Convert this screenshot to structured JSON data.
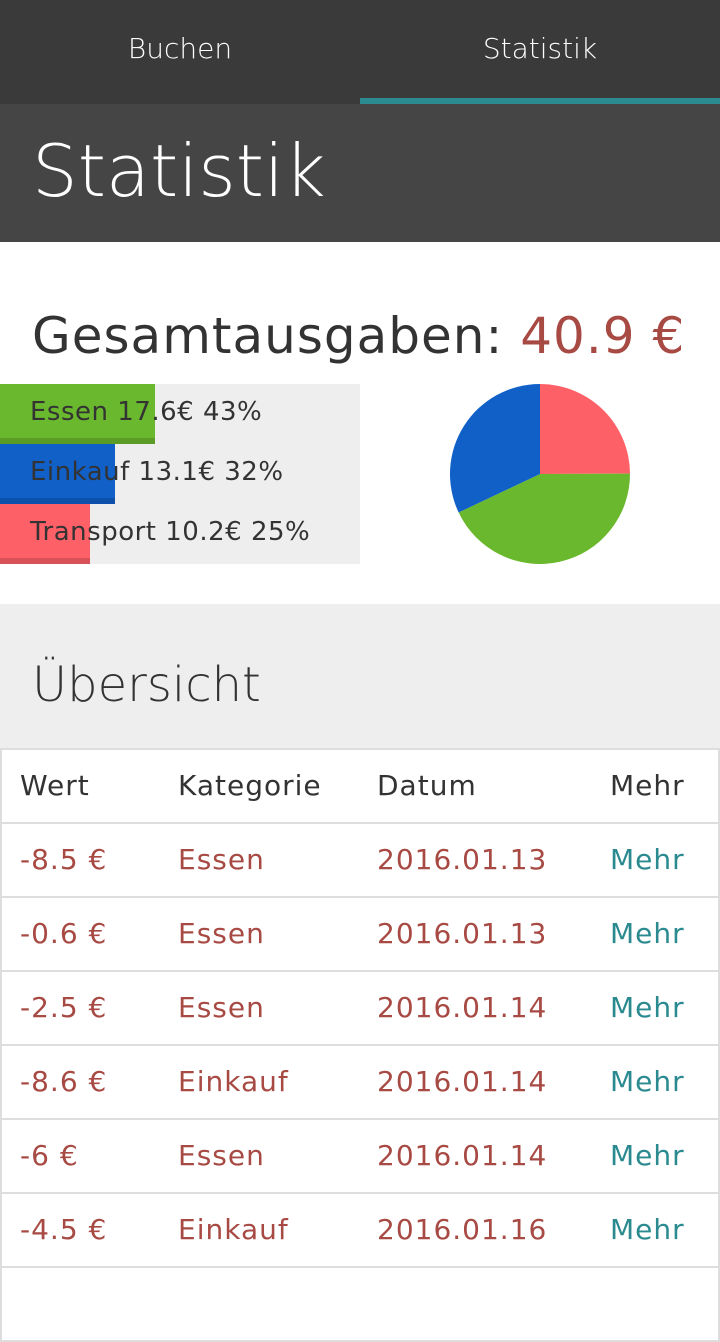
{
  "tabs": [
    {
      "label": "Buchen",
      "active": false
    },
    {
      "label": "Statistik",
      "active": true
    }
  ],
  "colors": {
    "accent": "#2a8a8f",
    "value_red": "#a84a44",
    "essen": "#6ab82d",
    "einkauf": "#1060c8",
    "transport": "#fe6068"
  },
  "page_title": "Statistik",
  "total": {
    "label": "Gesamtausgaben:",
    "value": "40.9 €"
  },
  "categories": [
    {
      "label": "Essen 17.6€ 43%",
      "name": "Essen",
      "amount": 17.6,
      "percent": 43,
      "color": "#6ab82d"
    },
    {
      "label": "Einkauf 13.1€ 32%",
      "name": "Einkauf",
      "amount": 13.1,
      "percent": 32,
      "color": "#1060c8"
    },
    {
      "label": "Transport 10.2€ 25%",
      "name": "Transport",
      "amount": 10.2,
      "percent": 25,
      "color": "#fe6068"
    }
  ],
  "overview": {
    "title": "Übersicht",
    "headers": [
      "Wert",
      "Kategorie",
      "Datum",
      "Mehr"
    ],
    "rows": [
      [
        "-8.5 €",
        "Essen",
        "2016.01.13",
        "Mehr"
      ],
      [
        "-0.6 €",
        "Essen",
        "2016.01.13",
        "Mehr"
      ],
      [
        "-2.5 €",
        "Essen",
        "2016.01.14",
        "Mehr"
      ],
      [
        "-8.6 €",
        "Einkauf",
        "2016.01.14",
        "Mehr"
      ],
      [
        "-6 €",
        "Essen",
        "2016.01.14",
        "Mehr"
      ],
      [
        "-4.5 €",
        "Einkauf",
        "2016.01.16",
        "Mehr"
      ]
    ]
  }
}
